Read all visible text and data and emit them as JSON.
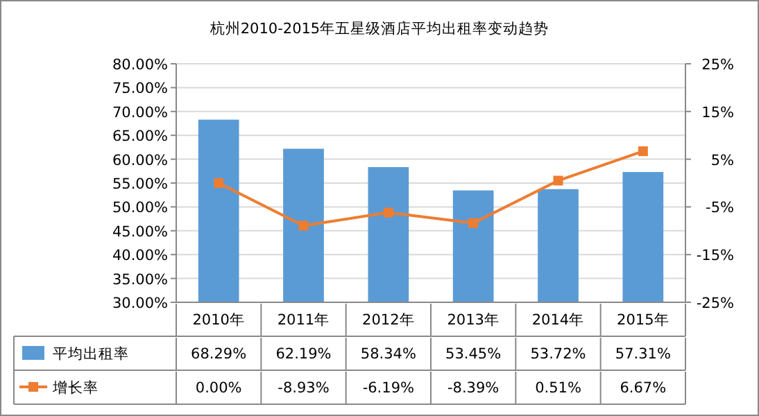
{
  "chart_data": {
    "type": "bar",
    "title": "杭州2010-2015年五星级酒店平均出租率变动趋势",
    "categories": [
      "2010年",
      "2011年",
      "2012年",
      "2013年",
      "2014年",
      "2015年"
    ],
    "series": [
      {
        "name": "平均出租率",
        "color": "#5b9bd5",
        "values": [
          68.29,
          62.19,
          58.34,
          53.45,
          53.72,
          57.31
        ],
        "value_labels": [
          "68.29%",
          "62.19%",
          "58.34%",
          "53.45%",
          "53.72%",
          "57.31%"
        ]
      },
      {
        "name": "增长率",
        "type": "line",
        "axis": "y2",
        "color": "#ed7d31",
        "marker": "square",
        "values": [
          0.0,
          -8.93,
          -6.19,
          -8.39,
          0.51,
          6.67
        ],
        "value_labels": [
          "0.00%",
          "-8.93%",
          "-6.19%",
          "-8.39%",
          "0.51%",
          "6.67%"
        ]
      }
    ],
    "ylim": [
      30,
      80
    ],
    "yticks": [
      {
        "value": 30,
        "label": "30.00%"
      },
      {
        "value": 35,
        "label": "35.00%"
      },
      {
        "value": 40,
        "label": "40.00%"
      },
      {
        "value": 45,
        "label": "45.00%"
      },
      {
        "value": 50,
        "label": "50.00%"
      },
      {
        "value": 55,
        "label": "55.00%"
      },
      {
        "value": 60,
        "label": "60.00%"
      },
      {
        "value": 65,
        "label": "65.00%"
      },
      {
        "value": 70,
        "label": "70.00%"
      },
      {
        "value": 75,
        "label": "75.00%"
      },
      {
        "value": 80,
        "label": "80.00%"
      }
    ],
    "y2lim": [
      -25,
      25
    ],
    "y2ticks": [
      {
        "value": -25,
        "label": "-25%"
      },
      {
        "value": -15,
        "label": "-15%"
      },
      {
        "value": -5,
        "label": "-5%"
      },
      {
        "value": 5,
        "label": "5%"
      },
      {
        "value": 15,
        "label": "15%"
      },
      {
        "value": 25,
        "label": "25%"
      }
    ],
    "grid": "y",
    "legend": "bottom"
  }
}
